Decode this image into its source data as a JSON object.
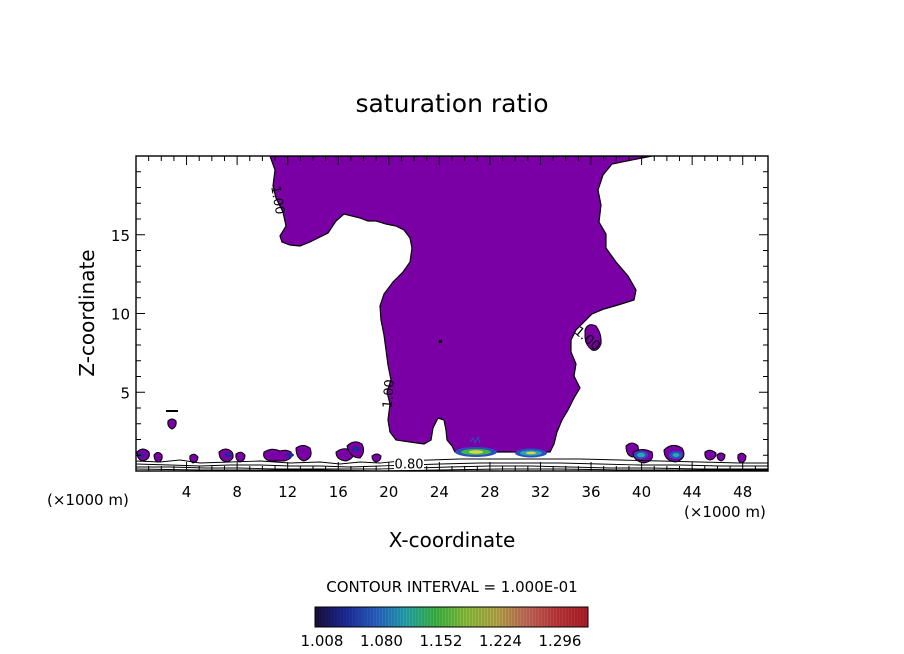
{
  "chart_data": {
    "type": "heatmap",
    "title": "saturation ratio",
    "xlabel": "X-coordinate",
    "ylabel": "Z-coordinate",
    "x_unit": "(×1000 m)",
    "y_unit": "(×1000 m)",
    "xlim": [
      0,
      50
    ],
    "ylim": [
      0,
      20
    ],
    "x_ticks": [
      4,
      8,
      12,
      16,
      20,
      24,
      28,
      32,
      36,
      40,
      44,
      48
    ],
    "y_ticks": [
      5,
      10,
      15
    ],
    "contour_interval_label": "CONTOUR INTERVAL = 1.000E-01",
    "contour_labels": [
      {
        "text": "1.00",
        "x": 11.2,
        "z": 17.2,
        "angle": 80
      },
      {
        "text": "1.00",
        "x": 20.0,
        "z": 4.9,
        "angle": -85
      },
      {
        "text": "1.00",
        "x": 35.7,
        "z": 8.4,
        "angle": 40
      },
      {
        "text": "0.80",
        "x": 21.6,
        "z": 0.4,
        "angle": 0
      }
    ],
    "colorbar": {
      "labels": [
        "1.008",
        "1.080",
        "1.152",
        "1.224",
        "1.296"
      ],
      "stops": [
        "#1a0f3a",
        "#1e2a9a",
        "#2b63c8",
        "#27a7b0",
        "#3fb844",
        "#8dc23e",
        "#b7a94a",
        "#c46a5a",
        "#c0383c",
        "#b01e2a"
      ]
    },
    "fill_color": "#7a00a6"
  }
}
